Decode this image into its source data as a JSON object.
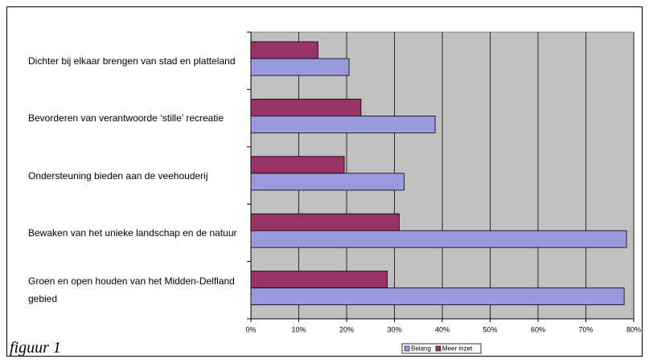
{
  "chart_data": {
    "type": "hbar",
    "categories": [
      "Dichter bij elkaar brengen van stad en platteland",
      "Bevorderen van verantwoorde ‘stille’ recreatie",
      "Ondersteuning bieden aan de veehouderij",
      "Bewaken van het unieke landschap en de natuur",
      "Groen en open houden van het Midden-Delfland gebied"
    ],
    "series": [
      {
        "name": "Belang",
        "color": "#9999dd",
        "values": [
          20.5,
          38.5,
          32,
          78.5,
          78
        ]
      },
      {
        "name": "Meer inzet",
        "color": "#993366",
        "values": [
          14,
          23,
          19.5,
          31,
          28.5
        ]
      }
    ],
    "xlim": [
      0,
      80
    ],
    "xticks": [
      {
        "value": 0,
        "label": "0%"
      },
      {
        "value": 10,
        "label": "10%"
      },
      {
        "value": 20,
        "label": "20%"
      },
      {
        "value": 30,
        "label": "30%"
      },
      {
        "value": 40,
        "label": "40%"
      },
      {
        "value": 50,
        "label": "50%"
      },
      {
        "value": 60,
        "label": "60%"
      },
      {
        "value": 70,
        "label": "70%"
      },
      {
        "value": 80,
        "label": "80%"
      }
    ],
    "grid": true,
    "legend": "bottom",
    "background": "#c0c0c0"
  },
  "caption": "figuur 1"
}
